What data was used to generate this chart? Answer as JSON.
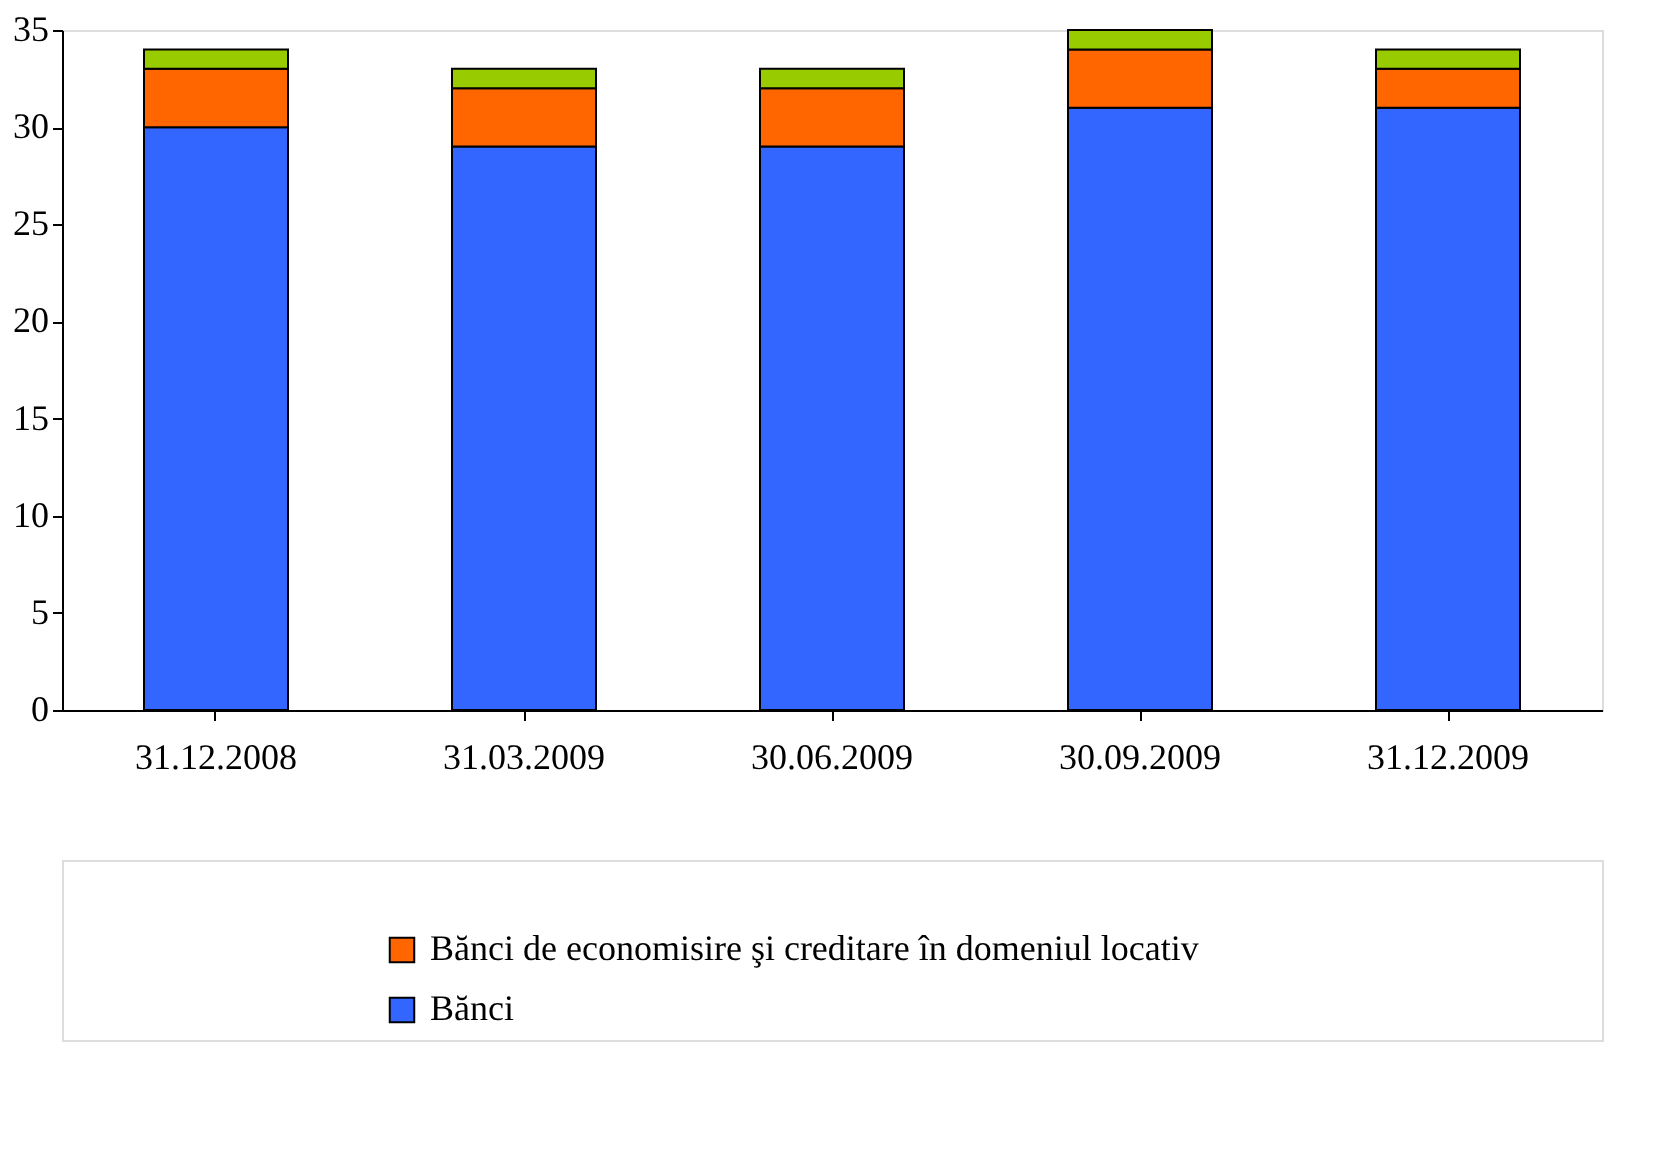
{
  "chart_data": {
    "type": "bar",
    "stacked": true,
    "categories": [
      "31.12.2008",
      "31.03.2009",
      "30.06.2009",
      "30.09.2009",
      "31.12.2009"
    ],
    "series": [
      {
        "name": "Bănci",
        "color": "#3366ff",
        "values": [
          30,
          29,
          29,
          31,
          31
        ]
      },
      {
        "name": "Bănci de economisire şi creditare în domeniul locativ",
        "color": "#ff6600",
        "values": [
          3,
          3,
          3,
          3,
          2
        ]
      },
      {
        "color": "#99cc00",
        "values": [
          1,
          1,
          1,
          1,
          1
        ]
      }
    ],
    "ylim": [
      0,
      35
    ],
    "yticks": [
      0,
      5,
      10,
      15,
      20,
      25,
      30,
      35
    ],
    "grid": false,
    "legend": "bottom"
  }
}
